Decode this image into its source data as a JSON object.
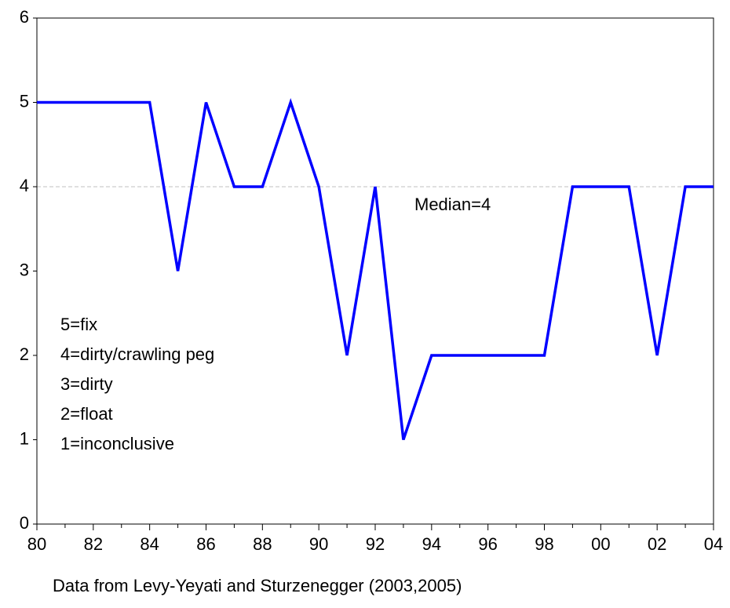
{
  "chart_data": {
    "type": "line",
    "categories": [
      "80",
      null,
      "82",
      null,
      "84",
      null,
      "86",
      null,
      "88",
      null,
      "90",
      null,
      "92",
      null,
      "94",
      null,
      "96",
      null,
      "98",
      null,
      "00",
      null,
      "02",
      null,
      "04"
    ],
    "values": [
      5,
      5,
      5,
      5,
      5,
      3,
      5,
      4,
      4,
      5,
      4,
      2,
      4,
      1,
      2,
      2,
      2,
      2,
      2,
      4,
      4,
      4,
      2,
      4,
      4
    ],
    "color": "#0000ff",
    "ylim": [
      0,
      6
    ],
    "yticks": [
      0,
      1,
      2,
      3,
      4,
      5,
      6
    ],
    "median": 4,
    "median_color": "#c0c0c0",
    "median_label": "Median=4",
    "notes": [
      "5=fix",
      "4=dirty/crawling peg",
      "3=dirty",
      "2=float",
      "1=inconclusive"
    ],
    "x_label": "Data from Levy-Yeyati and Sturzenegger (2003,2005)"
  }
}
